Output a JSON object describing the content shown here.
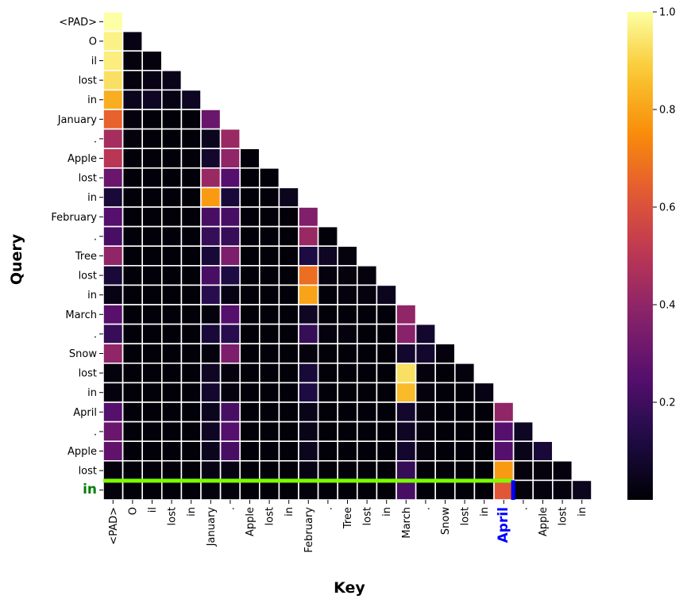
{
  "chart_data": {
    "type": "heatmap",
    "xlabel": "Key",
    "ylabel": "Query",
    "tokens": [
      "<PAD>",
      "O",
      "il",
      "lost",
      "in",
      "January",
      ".",
      "Apple",
      "lost",
      "in",
      "February",
      ".",
      "Tree",
      "lost",
      "in",
      "March",
      ".",
      "Snow",
      "lost",
      "in",
      "April",
      ".",
      "Apple",
      "lost",
      "in"
    ],
    "highlight_query": "in",
    "highlight_key": "April",
    "colormap": "inferno",
    "colorbar_range": [
      0,
      1.0
    ],
    "colorbar_ticks": [
      0.2,
      0.4,
      0.6,
      0.8,
      1.0
    ],
    "mask": "upper-triangle (key index > query index)",
    "values": [
      [
        1.0
      ],
      [
        0.97,
        0.03
      ],
      [
        0.96,
        0.02,
        0.02
      ],
      [
        0.93,
        0.02,
        0.03,
        0.04
      ],
      [
        0.82,
        0.05,
        0.06,
        0.03,
        0.06
      ],
      [
        0.65,
        0.02,
        0.01,
        0.01,
        0.01,
        0.3
      ],
      [
        0.45,
        0.02,
        0.01,
        0.01,
        0.01,
        0.05,
        0.42
      ],
      [
        0.5,
        0.01,
        0.01,
        0.01,
        0.01,
        0.08,
        0.4,
        0.01
      ],
      [
        0.3,
        0.01,
        0.01,
        0.01,
        0.01,
        0.42,
        0.25,
        0.01,
        0.01
      ],
      [
        0.1,
        0.01,
        0.01,
        0.01,
        0.01,
        0.78,
        0.1,
        0.01,
        0.01,
        0.05
      ],
      [
        0.25,
        0.01,
        0.01,
        0.01,
        0.01,
        0.22,
        0.22,
        0.01,
        0.01,
        0.01,
        0.36
      ],
      [
        0.22,
        0.01,
        0.01,
        0.01,
        0.01,
        0.18,
        0.18,
        0.01,
        0.01,
        0.01,
        0.42,
        0.01
      ],
      [
        0.4,
        0.01,
        0.01,
        0.01,
        0.01,
        0.1,
        0.35,
        0.01,
        0.01,
        0.01,
        0.12,
        0.06,
        0.02
      ],
      [
        0.1,
        0.01,
        0.01,
        0.01,
        0.01,
        0.22,
        0.12,
        0.01,
        0.01,
        0.01,
        0.68,
        0.02,
        0.02,
        0.02
      ],
      [
        0.03,
        0.01,
        0.01,
        0.01,
        0.01,
        0.15,
        0.03,
        0.01,
        0.01,
        0.01,
        0.8,
        0.01,
        0.02,
        0.02,
        0.05
      ],
      [
        0.26,
        0.01,
        0.01,
        0.01,
        0.01,
        0.02,
        0.25,
        0.01,
        0.01,
        0.01,
        0.06,
        0.01,
        0.01,
        0.01,
        0.01,
        0.4
      ],
      [
        0.18,
        0.01,
        0.01,
        0.01,
        0.01,
        0.1,
        0.15,
        0.01,
        0.01,
        0.01,
        0.18,
        0.02,
        0.02,
        0.01,
        0.01,
        0.38,
        0.08
      ],
      [
        0.4,
        0.01,
        0.01,
        0.01,
        0.01,
        0.02,
        0.35,
        0.01,
        0.01,
        0.01,
        0.02,
        0.01,
        0.01,
        0.01,
        0.01,
        0.08,
        0.08,
        0.02
      ],
      [
        0.02,
        0.01,
        0.01,
        0.01,
        0.01,
        0.06,
        0.02,
        0.01,
        0.01,
        0.01,
        0.1,
        0.01,
        0.01,
        0.01,
        0.01,
        0.93,
        0.02,
        0.01,
        0.02
      ],
      [
        0.02,
        0.01,
        0.01,
        0.01,
        0.01,
        0.08,
        0.02,
        0.01,
        0.01,
        0.01,
        0.12,
        0.01,
        0.01,
        0.01,
        0.01,
        0.85,
        0.02,
        0.01,
        0.01,
        0.03
      ],
      [
        0.25,
        0.01,
        0.01,
        0.01,
        0.01,
        0.05,
        0.22,
        0.01,
        0.01,
        0.01,
        0.04,
        0.01,
        0.01,
        0.01,
        0.01,
        0.08,
        0.02,
        0.01,
        0.01,
        0.01,
        0.4
      ],
      [
        0.3,
        0.01,
        0.01,
        0.01,
        0.01,
        0.06,
        0.25,
        0.01,
        0.01,
        0.01,
        0.04,
        0.01,
        0.01,
        0.01,
        0.01,
        0.06,
        0.02,
        0.01,
        0.01,
        0.01,
        0.25,
        0.06
      ],
      [
        0.28,
        0.01,
        0.01,
        0.01,
        0.01,
        0.05,
        0.22,
        0.01,
        0.01,
        0.01,
        0.05,
        0.01,
        0.01,
        0.01,
        0.01,
        0.08,
        0.02,
        0.01,
        0.01,
        0.01,
        0.25,
        0.04,
        0.1
      ],
      [
        0.02,
        0.01,
        0.01,
        0.01,
        0.01,
        0.03,
        0.03,
        0.01,
        0.01,
        0.01,
        0.03,
        0.01,
        0.01,
        0.01,
        0.01,
        0.18,
        0.01,
        0.01,
        0.01,
        0.01,
        0.78,
        0.02,
        0.02,
        0.02
      ],
      [
        0.02,
        0.01,
        0.01,
        0.01,
        0.01,
        0.02,
        0.02,
        0.01,
        0.01,
        0.01,
        0.02,
        0.01,
        0.01,
        0.01,
        0.01,
        0.22,
        0.01,
        0.01,
        0.01,
        0.01,
        0.62,
        0.02,
        0.02,
        0.02,
        0.05
      ]
    ]
  }
}
